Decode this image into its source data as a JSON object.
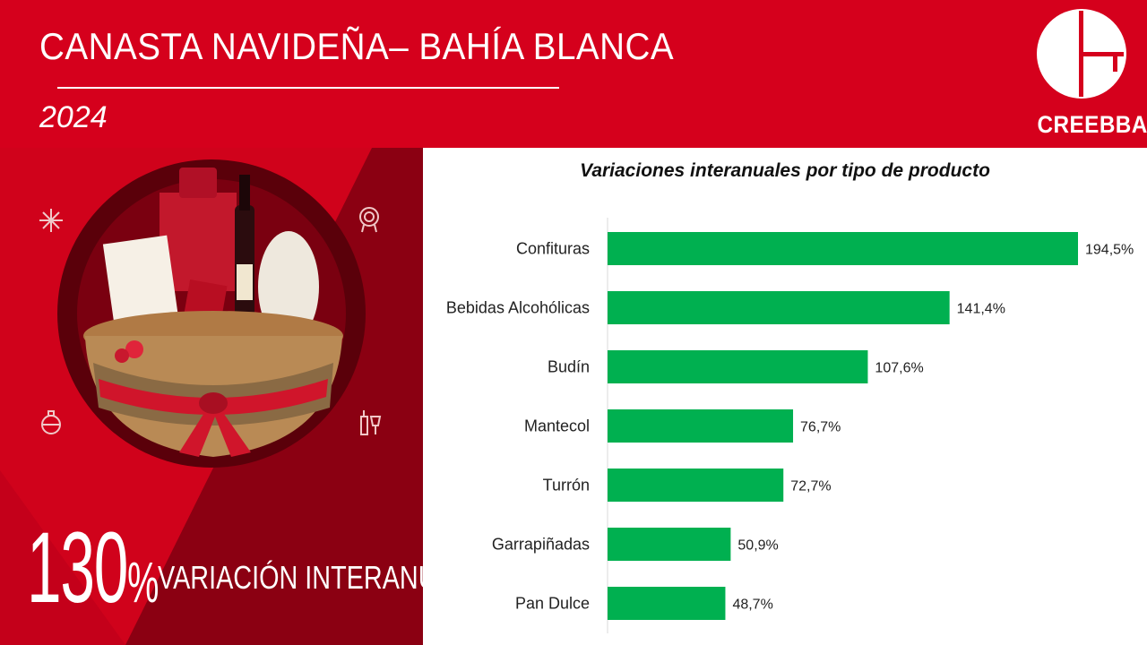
{
  "header": {
    "title": "CANASTA NAVIDEÑA– BAHÍA BLANCA",
    "year": "2024",
    "logo_text": "CREEBBA"
  },
  "kpi": {
    "value": "130",
    "unit": "%",
    "label": "VARIACIÓN INTERANUAL"
  },
  "icons": [
    "snowflake-icon",
    "ornament-wreath-icon",
    "christmas-ball-icon",
    "wine-glass-icon",
    "gift-basket-image"
  ],
  "colors": {
    "header_red": "#d5001c",
    "dark_red": "#8b0012",
    "bar_green": "#00b050"
  },
  "chart_data": {
    "type": "bar",
    "orientation": "horizontal",
    "title": "Variaciones interanuales por tipo de producto",
    "categories": [
      "Confituras",
      "Bebidas Alcohólicas",
      "Budín",
      "Mantecol",
      "Turrón",
      "Garrapiñadas",
      "Pan Dulce"
    ],
    "values": [
      194.5,
      141.4,
      107.6,
      76.7,
      72.7,
      50.9,
      48.7
    ],
    "value_labels": [
      "194,5%",
      "141,4%",
      "107,6%",
      "76,7%",
      "72,7%",
      "50,9%",
      "48,7%"
    ],
    "xlim": [
      0,
      194.5
    ],
    "grid": false,
    "legend": "none"
  }
}
